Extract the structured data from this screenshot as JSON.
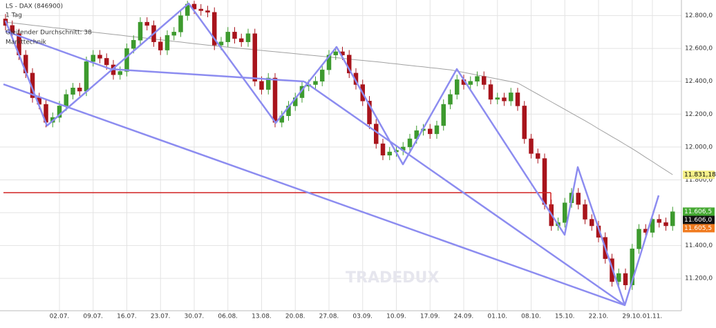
{
  "chart_data": {
    "type": "candlestick",
    "title": "LS - DAX (846900)",
    "interval": "1 Tag",
    "indicator_group": "Markttechnik",
    "watermark": "TRADEDUX",
    "up_color": "#3d9a2e",
    "down_color": "#a8141c",
    "grid": true,
    "ylim": [
      10940,
      12895
    ],
    "yticks": [
      {
        "value": 11200,
        "label": "11.200,0"
      },
      {
        "value": 11400,
        "label": "11.400,0"
      },
      {
        "value": 11600,
        "label": "11.600,0"
      },
      {
        "value": 11800,
        "label": "11.800,0"
      },
      {
        "value": 12000,
        "label": "12.000,0"
      },
      {
        "value": 12200,
        "label": "12.200,0"
      },
      {
        "value": 12400,
        "label": "12.400,0"
      },
      {
        "value": 12600,
        "label": "12.600,0"
      },
      {
        "value": 12800,
        "label": "12.800,0"
      }
    ],
    "categories": [
      null,
      null,
      null,
      null,
      null,
      null,
      null,
      null,
      "02.07.",
      null,
      null,
      null,
      null,
      "09.07.",
      null,
      null,
      null,
      null,
      "16.07.",
      null,
      null,
      null,
      null,
      "23.07.",
      null,
      null,
      null,
      null,
      "30.07.",
      null,
      null,
      null,
      null,
      "06.08.",
      null,
      null,
      null,
      null,
      "13.08.",
      null,
      null,
      null,
      null,
      "20.08.",
      null,
      null,
      null,
      null,
      "27.08.",
      null,
      null,
      null,
      null,
      "03.09.",
      null,
      null,
      null,
      null,
      "10.09.",
      null,
      null,
      null,
      null,
      "17.09.",
      null,
      null,
      null,
      null,
      "24.09.",
      null,
      null,
      null,
      null,
      "01.10.",
      null,
      null,
      null,
      null,
      "08.10.",
      null,
      null,
      null,
      null,
      "15.10.",
      null,
      null,
      null,
      null,
      "22.10.",
      null,
      null,
      null,
      null,
      "29.10.",
      null,
      null,
      "01.11.",
      null,
      null,
      null
    ],
    "open": [
      12780,
      12740,
      12690,
      12560,
      12450,
      12300,
      12260,
      12150,
      12180,
      12250,
      12320,
      12360,
      12340,
      12520,
      12560,
      12540,
      12500,
      12440,
      12460,
      12600,
      12650,
      12760,
      12740,
      12640,
      12590,
      12680,
      12700,
      12800,
      12870,
      12840,
      12830,
      12820,
      12620,
      12640,
      12700,
      12660,
      12640,
      12690,
      12400,
      12350,
      12420,
      12150,
      12190,
      12250,
      12300,
      12370,
      12380,
      12400,
      12470,
      12560,
      12580,
      12560,
      12450,
      12380,
      12280,
      12140,
      12020,
      11950,
      11970,
      11980,
      12000,
      12050,
      12100,
      12110,
      12080,
      12130,
      12260,
      12320,
      12410,
      12380,
      12400,
      12430,
      12380,
      12290,
      12300,
      12280,
      12330,
      12250,
      12050,
      11960,
      11930,
      11650,
      11520,
      11540,
      11660,
      11720,
      11650,
      11560,
      11520,
      11450,
      11320,
      11180,
      11230,
      11160,
      11380,
      11500,
      11480,
      11560,
      11540,
      11520
    ],
    "high": [
      12810,
      12770,
      12720,
      12590,
      12480,
      12330,
      12290,
      12210,
      12280,
      12350,
      12390,
      12390,
      12550,
      12590,
      12590,
      12570,
      12530,
      12490,
      12630,
      12680,
      12790,
      12790,
      12770,
      12670,
      12710,
      12730,
      12830,
      12890,
      12890,
      12870,
      12860,
      12850,
      12670,
      12730,
      12730,
      12690,
      12720,
      12720,
      12430,
      12450,
      12450,
      12220,
      12280,
      12330,
      12400,
      12410,
      12430,
      12500,
      12590,
      12610,
      12610,
      12590,
      12480,
      12410,
      12310,
      12170,
      12050,
      12000,
      12010,
      12030,
      12080,
      12130,
      12140,
      12140,
      12160,
      12290,
      12350,
      12440,
      12440,
      12430,
      12460,
      12460,
      12410,
      12330,
      12330,
      12360,
      12360,
      12280,
      12080,
      11990,
      11960,
      11680,
      11570,
      11690,
      11750,
      11750,
      11680,
      11590,
      11550,
      11480,
      11350,
      11260,
      11260,
      11410,
      11530,
      11530,
      11590,
      11590,
      11570,
      11636
    ],
    "low": [
      12710,
      12660,
      12530,
      12420,
      12270,
      12230,
      12120,
      12120,
      12150,
      12220,
      12290,
      12310,
      12310,
      12490,
      12510,
      12470,
      12410,
      12410,
      12430,
      12570,
      12620,
      12710,
      12610,
      12560,
      12560,
      12650,
      12670,
      12770,
      12810,
      12800,
      12790,
      12590,
      12590,
      12610,
      12630,
      12610,
      12610,
      12370,
      12320,
      12320,
      12120,
      12120,
      12160,
      12220,
      12270,
      12340,
      12350,
      12370,
      12440,
      12530,
      12530,
      12420,
      12350,
      12250,
      12110,
      11990,
      11920,
      11920,
      11940,
      11950,
      11970,
      12020,
      12070,
      12050,
      12050,
      12100,
      12230,
      12290,
      12350,
      12350,
      12370,
      12350,
      12260,
      12260,
      12250,
      12250,
      12220,
      12020,
      11930,
      11900,
      11620,
      11490,
      11490,
      11510,
      11630,
      11620,
      11530,
      11490,
      11420,
      11290,
      11150,
      11150,
      11130,
      11130,
      11350,
      11450,
      11450,
      11510,
      11490,
      11490
    ],
    "close": [
      12740,
      12690,
      12560,
      12450,
      12300,
      12260,
      12150,
      12180,
      12250,
      12320,
      12360,
      12340,
      12520,
      12560,
      12540,
      12500,
      12440,
      12460,
      12600,
      12650,
      12760,
      12740,
      12640,
      12590,
      12680,
      12700,
      12800,
      12870,
      12840,
      12830,
      12820,
      12620,
      12640,
      12700,
      12660,
      12640,
      12690,
      12400,
      12350,
      12420,
      12150,
      12190,
      12250,
      12300,
      12370,
      12380,
      12400,
      12470,
      12560,
      12580,
      12560,
      12450,
      12380,
      12280,
      12140,
      12020,
      11950,
      11970,
      11980,
      12000,
      12050,
      12100,
      12110,
      12080,
      12130,
      12260,
      12320,
      12410,
      12380,
      12400,
      12430,
      12380,
      12290,
      12300,
      12280,
      12330,
      12250,
      12050,
      11960,
      11930,
      11650,
      11520,
      11540,
      11660,
      11720,
      11650,
      11560,
      11520,
      11450,
      11320,
      11180,
      11230,
      11160,
      11380,
      11500,
      11480,
      11560,
      11540,
      11520,
      11606
    ],
    "ma": {
      "name": "Gleitender Durchschnitt: 38",
      "color": "#a0a0a0",
      "values": [
        12760,
        12755,
        12751,
        12746,
        12741,
        12737,
        12732,
        12727,
        12723,
        12718,
        12713,
        12709,
        12704,
        12699,
        12695,
        12690,
        12685,
        12681,
        12676,
        12671,
        12667,
        12662,
        12657,
        12653,
        12648,
        12643,
        12639,
        12634,
        12629,
        12625,
        12620,
        12616,
        12612,
        12608,
        12604,
        12600,
        12596,
        12592,
        12588,
        12584,
        12580,
        12576,
        12572,
        12568,
        12564,
        12560,
        12556,
        12552,
        12548,
        12544,
        12540,
        12535,
        12531,
        12527,
        12523,
        12519,
        12515,
        12510,
        12506,
        12501,
        12497,
        12492,
        12488,
        12483,
        12479,
        12474,
        12470,
        12462,
        12454,
        12446,
        12438,
        12430,
        12422,
        12414,
        12406,
        12398,
        12390,
        12367,
        12344,
        12321,
        12298,
        12275,
        12252,
        12229,
        12206,
        12183,
        12160,
        12136,
        12111,
        12087,
        12063,
        12039,
        12014,
        11990,
        11964,
        11937,
        11911,
        11884,
        11858,
        11831.18
      ]
    },
    "price_markers": [
      {
        "value": 11831.18,
        "label": "11.831,18",
        "color": "#f5f08a",
        "text_color": "#000000"
      },
      {
        "value": 11606.5,
        "label": "11.606,5",
        "color": "#45a832",
        "text_color": "#ffffff"
      },
      {
        "value": 11606.0,
        "label": "11.606,0",
        "color": "#111111",
        "text_color": "#ffffff"
      },
      {
        "value": 11605.5,
        "label": "11.605,5",
        "color": "#f07a1e",
        "text_color": "#ffffff"
      }
    ]
  }
}
